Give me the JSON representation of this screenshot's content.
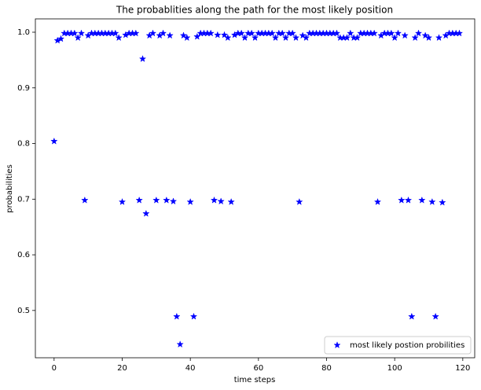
{
  "chart_data": {
    "type": "scatter",
    "title": "The probablities along the path for the most likely position",
    "xlabel": "time steps",
    "ylabel": "probabilities",
    "legend": "lower right",
    "xlim": [
      -5.5,
      123.5
    ],
    "ylim": [
      0.415,
      1.024
    ],
    "xticks": [
      0,
      20,
      40,
      60,
      80,
      100,
      120
    ],
    "yticks": [
      0.5,
      0.6,
      0.7,
      0.8,
      0.9,
      {
        "value": 1,
        "label": "1.0"
      }
    ],
    "series": [
      {
        "name": "most likely postion probilities",
        "color": "#0000ff",
        "marker": "star",
        "x": [
          0,
          1,
          2,
          3,
          4,
          5,
          6,
          7,
          8,
          9,
          10,
          11,
          12,
          13,
          14,
          15,
          16,
          17,
          18,
          19,
          20,
          21,
          22,
          23,
          24,
          25,
          26,
          27,
          28,
          29,
          30,
          31,
          32,
          33,
          34,
          35,
          36,
          37,
          38,
          39,
          40,
          41,
          42,
          43,
          44,
          45,
          46,
          47,
          48,
          49,
          50,
          51,
          52,
          53,
          54,
          55,
          56,
          57,
          58,
          59,
          60,
          61,
          62,
          63,
          64,
          65,
          66,
          67,
          68,
          69,
          70,
          71,
          72,
          73,
          74,
          75,
          76,
          77,
          78,
          79,
          80,
          81,
          82,
          83,
          84,
          85,
          86,
          87,
          88,
          89,
          90,
          91,
          92,
          93,
          94,
          95,
          96,
          97,
          98,
          99,
          100,
          101,
          102,
          103,
          104,
          105,
          106,
          107,
          108,
          109,
          110,
          111,
          112,
          113,
          114,
          115,
          116,
          117,
          118,
          119
        ],
        "values": [
          0.804,
          0.985,
          0.988,
          0.998,
          0.998,
          0.998,
          0.998,
          0.99,
          0.998,
          0.698,
          0.994,
          0.998,
          0.998,
          0.998,
          0.998,
          0.998,
          0.998,
          0.998,
          0.998,
          0.99,
          0.695,
          0.995,
          0.998,
          0.998,
          0.998,
          0.698,
          0.952,
          0.674,
          0.994,
          0.998,
          0.698,
          0.994,
          0.998,
          0.698,
          0.994,
          0.696,
          0.489,
          0.439,
          0.994,
          0.99,
          0.695,
          0.489,
          0.992,
          0.998,
          0.998,
          0.998,
          0.998,
          0.698,
          0.995,
          0.696,
          0.995,
          0.99,
          0.695,
          0.995,
          0.998,
          0.998,
          0.99,
          0.998,
          0.998,
          0.99,
          0.998,
          0.998,
          0.998,
          0.998,
          0.998,
          0.99,
          0.998,
          0.998,
          0.99,
          0.998,
          0.998,
          0.99,
          0.695,
          0.994,
          0.99,
          0.998,
          0.998,
          0.998,
          0.998,
          0.998,
          0.998,
          0.998,
          0.998,
          0.998,
          0.99,
          0.99,
          0.99,
          0.998,
          0.99,
          0.99,
          0.998,
          0.998,
          0.998,
          0.998,
          0.998,
          0.695,
          0.994,
          0.998,
          0.998,
          0.998,
          0.99,
          0.998,
          0.698,
          0.994,
          0.698,
          0.489,
          0.99,
          0.998,
          0.698,
          0.994,
          0.99,
          0.695,
          0.489,
          0.99,
          0.694,
          0.994,
          0.998,
          0.998,
          0.998,
          0.998
        ]
      }
    ]
  }
}
